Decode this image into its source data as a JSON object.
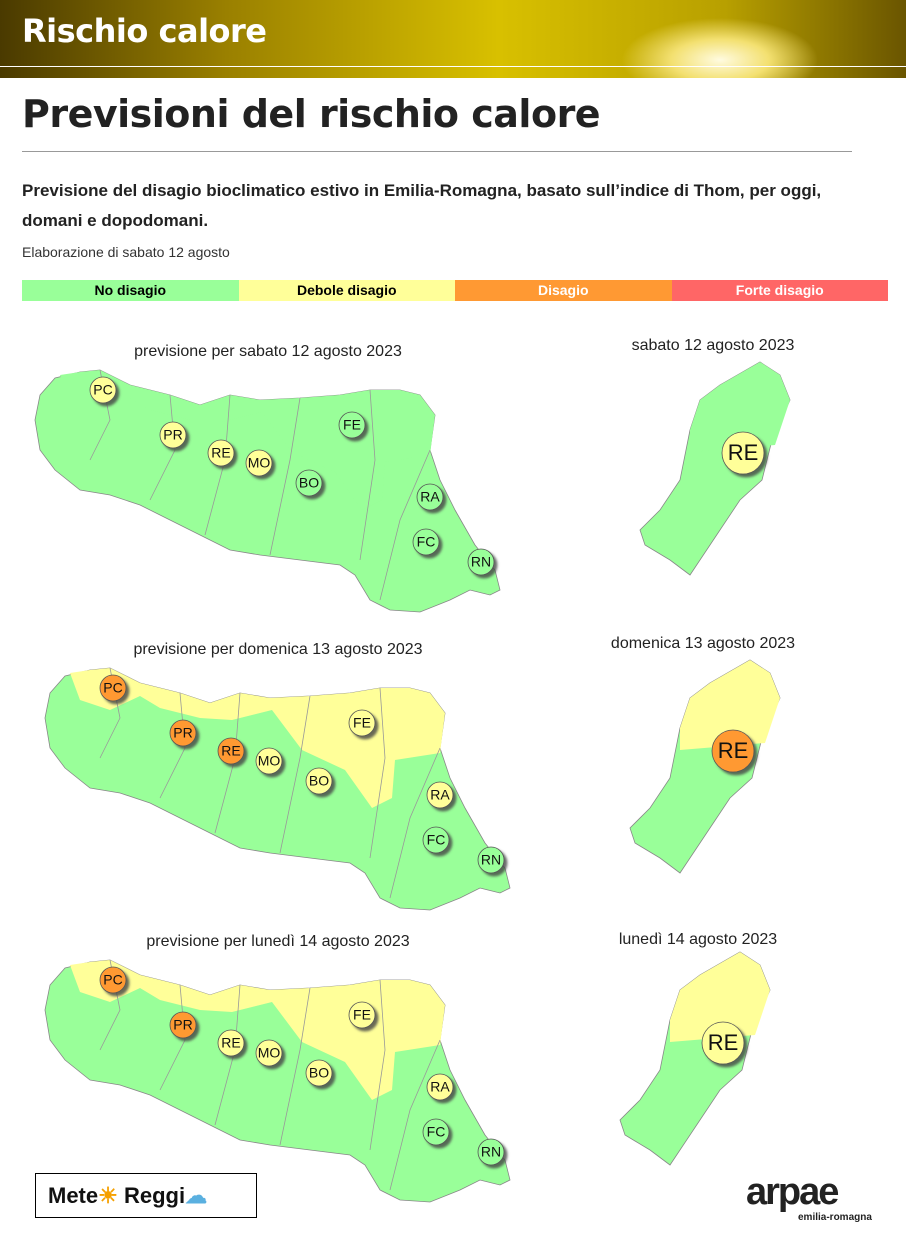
{
  "header": {
    "title": "Rischio calore"
  },
  "page": {
    "title": "Previsioni del rischio calore",
    "intro": "Previsione del disagio bioclimatico estivo in Emilia-Romagna, basato sull’indice di Thom, per oggi, domani e dopodomani.",
    "elaboration": "Elaborazione di sabato 12 agosto"
  },
  "legend": [
    {
      "label": "No disagio",
      "color": "#99ff99",
      "text_color": "#000000"
    },
    {
      "label": "Debole disagio",
      "color": "#ffff99",
      "text_color": "#000000"
    },
    {
      "label": "Disagio",
      "color": "#ff9933",
      "text_color": "#ffffff"
    },
    {
      "label": "Forte disagio",
      "color": "#ff6666",
      "text_color": "#ffffff"
    }
  ],
  "maps": [
    {
      "title": "previsione per sabato 12 agosto 2023",
      "plain_color": "#99ff99",
      "hills_color": "#99ff99",
      "provinces": [
        {
          "code": "PC",
          "color": "#ffff99"
        },
        {
          "code": "PR",
          "color": "#ffff99"
        },
        {
          "code": "RE",
          "color": "#ffff99"
        },
        {
          "code": "MO",
          "color": "#ffff99"
        },
        {
          "code": "FE",
          "color": "#99ff99"
        },
        {
          "code": "BO",
          "color": "#99ff99"
        },
        {
          "code": "RA",
          "color": "#99ff99"
        },
        {
          "code": "FC",
          "color": "#99ff99"
        },
        {
          "code": "RN",
          "color": "#99ff99"
        }
      ],
      "detail": {
        "title": "sabato 12 agosto 2023",
        "code": "RE",
        "color": "#ffff99",
        "north_color": "#99ff99",
        "south_color": "#99ff99"
      }
    },
    {
      "title": "previsione per domenica 13 agosto 2023",
      "plain_color": "#ffff99",
      "hills_color": "#99ff99",
      "provinces": [
        {
          "code": "PC",
          "color": "#ff9933"
        },
        {
          "code": "PR",
          "color": "#ff9933"
        },
        {
          "code": "RE",
          "color": "#ff9933"
        },
        {
          "code": "MO",
          "color": "#ffff99"
        },
        {
          "code": "FE",
          "color": "#ffff99"
        },
        {
          "code": "BO",
          "color": "#ffff99"
        },
        {
          "code": "RA",
          "color": "#ffff99"
        },
        {
          "code": "FC",
          "color": "#99ff99"
        },
        {
          "code": "RN",
          "color": "#99ff99"
        }
      ],
      "detail": {
        "title": "domenica 13 agosto 2023",
        "code": "RE",
        "color": "#ff9933",
        "north_color": "#ffff99",
        "south_color": "#99ff99"
      }
    },
    {
      "title": "previsione per lunedì 14 agosto 2023",
      "plain_color": "#ffff99",
      "hills_color": "#99ff99",
      "provinces": [
        {
          "code": "PC",
          "color": "#ff9933"
        },
        {
          "code": "PR",
          "color": "#ff9933"
        },
        {
          "code": "RE",
          "color": "#ffff99"
        },
        {
          "code": "MO",
          "color": "#ffff99"
        },
        {
          "code": "FE",
          "color": "#ffff99"
        },
        {
          "code": "BO",
          "color": "#ffff99"
        },
        {
          "code": "RA",
          "color": "#ffff99"
        },
        {
          "code": "FC",
          "color": "#99ff99"
        },
        {
          "code": "RN",
          "color": "#99ff99"
        }
      ],
      "detail": {
        "title": "lunedì 14 agosto 2023",
        "code": "RE",
        "color": "#ffff99",
        "north_color": "#ffff99",
        "south_color": "#99ff99"
      }
    }
  ],
  "logos": {
    "left_part1": "Mete",
    "left_part2": "Reggi",
    "right_name": "arpae",
    "right_sub": "emilia-romagna"
  }
}
